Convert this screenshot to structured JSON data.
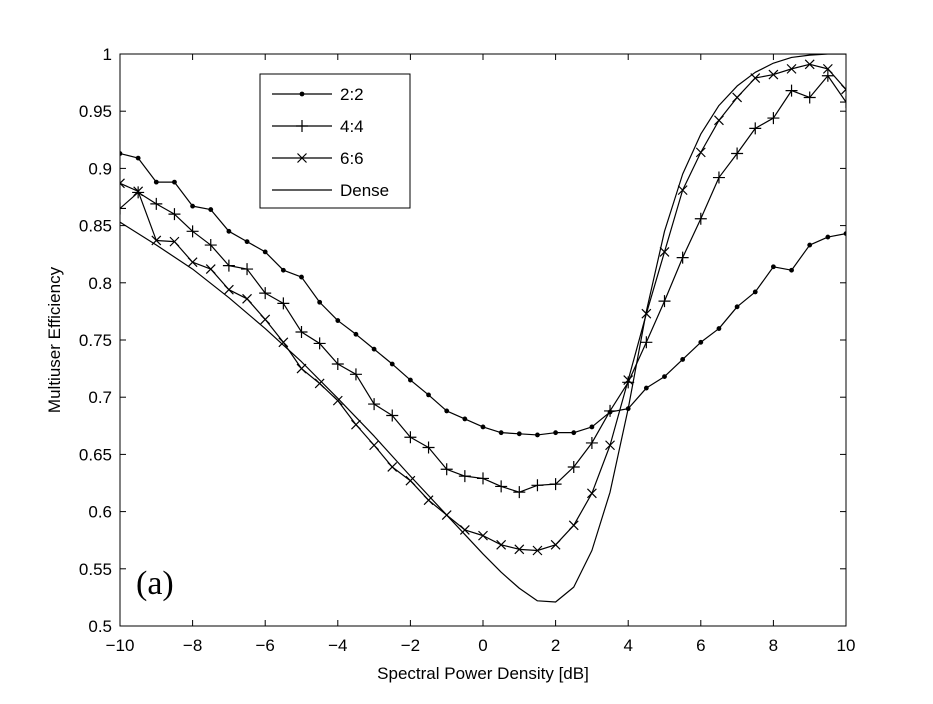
{
  "chart_data": {
    "type": "line",
    "xlabel": "Spectral Power Density [dB]",
    "ylabel": "Multiuser Efficiency",
    "xlim": [
      -10,
      10
    ],
    "ylim": [
      0.5,
      1
    ],
    "xticks": [
      -10,
      -8,
      -6,
      -4,
      -2,
      0,
      2,
      4,
      6,
      8,
      10
    ],
    "yticks": [
      0.5,
      0.55,
      0.6,
      0.65,
      0.7,
      0.75,
      0.8,
      0.85,
      0.9,
      0.95,
      1
    ],
    "xtick_labels": [
      "−10",
      "−8",
      "−6",
      "−4",
      "−2",
      "0",
      "2",
      "4",
      "6",
      "8",
      "10"
    ],
    "ytick_labels": [
      "0.5",
      "0.55",
      "0.6",
      "0.65",
      "0.7",
      "0.75",
      "0.8",
      "0.85",
      "0.9",
      "0.95",
      "1"
    ],
    "grid": false,
    "legend_position": "top-left",
    "annotation": "(a)",
    "line_color": "#000000",
    "series": [
      {
        "name": "2:2",
        "marker": "dot",
        "x": [
          -10,
          -9.5,
          -9,
          -8.5,
          -8,
          -7.5,
          -7,
          -6.5,
          -6,
          -5.5,
          -5,
          -4.5,
          -4,
          -3.5,
          -3,
          -2.5,
          -2,
          -1.5,
          -1,
          -0.5,
          0,
          0.5,
          1,
          1.5,
          2,
          2.5,
          3,
          3.5,
          4,
          4.5,
          5,
          5.5,
          6,
          6.5,
          7,
          7.5,
          8,
          8.5,
          9,
          9.5,
          10
        ],
        "y": [
          0.913,
          0.909,
          0.888,
          0.888,
          0.867,
          0.864,
          0.845,
          0.836,
          0.827,
          0.811,
          0.805,
          0.783,
          0.767,
          0.755,
          0.742,
          0.729,
          0.715,
          0.702,
          0.688,
          0.681,
          0.674,
          0.669,
          0.668,
          0.667,
          0.669,
          0.669,
          0.674,
          0.687,
          0.69,
          0.708,
          0.718,
          0.733,
          0.748,
          0.76,
          0.779,
          0.792,
          0.814,
          0.811,
          0.833,
          0.84,
          0.843
        ]
      },
      {
        "name": "4:4",
        "marker": "plus",
        "x": [
          -10,
          -9.5,
          -9,
          -8.5,
          -8,
          -7.5,
          -7,
          -6.5,
          -6,
          -5.5,
          -5,
          -4.5,
          -4,
          -3.5,
          -3,
          -2.5,
          -2,
          -1.5,
          -1,
          -0.5,
          0,
          0.5,
          1,
          1.5,
          2,
          2.5,
          3,
          3.5,
          4,
          4.5,
          5,
          5.5,
          6,
          6.5,
          7,
          7.5,
          8,
          8.5,
          9,
          9.5,
          10
        ],
        "y": [
          0.865,
          0.879,
          0.869,
          0.86,
          0.845,
          0.833,
          0.815,
          0.812,
          0.791,
          0.782,
          0.757,
          0.747,
          0.729,
          0.72,
          0.694,
          0.684,
          0.665,
          0.656,
          0.637,
          0.631,
          0.629,
          0.622,
          0.617,
          0.623,
          0.624,
          0.639,
          0.66,
          0.688,
          0.713,
          0.748,
          0.784,
          0.822,
          0.856,
          0.892,
          0.913,
          0.935,
          0.944,
          0.968,
          0.962,
          0.981,
          0.958
        ]
      },
      {
        "name": "6:6",
        "marker": "cross",
        "x": [
          -10,
          -9.5,
          -9,
          -8.5,
          -8,
          -7.5,
          -7,
          -6.5,
          -6,
          -5.5,
          -5,
          -4.5,
          -4,
          -3.5,
          -3,
          -2.5,
          -2,
          -1.5,
          -1,
          -0.5,
          0,
          0.5,
          1,
          1.5,
          2,
          2.5,
          3,
          3.5,
          4,
          4.5,
          5,
          5.5,
          6,
          6.5,
          7,
          7.5,
          8,
          8.5,
          9,
          9.5,
          10
        ],
        "y": [
          0.887,
          0.88,
          0.837,
          0.836,
          0.818,
          0.812,
          0.794,
          0.786,
          0.768,
          0.748,
          0.725,
          0.712,
          0.697,
          0.676,
          0.658,
          0.639,
          0.627,
          0.61,
          0.597,
          0.584,
          0.579,
          0.571,
          0.567,
          0.566,
          0.571,
          0.588,
          0.616,
          0.658,
          0.715,
          0.773,
          0.827,
          0.881,
          0.914,
          0.942,
          0.962,
          0.979,
          0.982,
          0.987,
          0.991,
          0.987,
          0.969
        ]
      },
      {
        "name": "Dense",
        "marker": "none",
        "x": [
          -10,
          -9,
          -8,
          -7,
          -6,
          -5,
          -4,
          -3,
          -2,
          -1,
          0,
          0.5,
          1,
          1.5,
          2,
          2.5,
          3,
          3.5,
          4,
          4.5,
          5,
          5.5,
          6,
          6.5,
          7,
          7.5,
          8,
          8.5,
          9,
          9.5,
          10
        ],
        "y": [
          0.853,
          0.833,
          0.812,
          0.787,
          0.76,
          0.731,
          0.699,
          0.666,
          0.631,
          0.597,
          0.563,
          0.547,
          0.533,
          0.522,
          0.521,
          0.534,
          0.566,
          0.617,
          0.69,
          0.775,
          0.845,
          0.895,
          0.93,
          0.955,
          0.972,
          0.984,
          0.992,
          0.997,
          0.999,
          1.0,
          1.0
        ]
      }
    ]
  }
}
